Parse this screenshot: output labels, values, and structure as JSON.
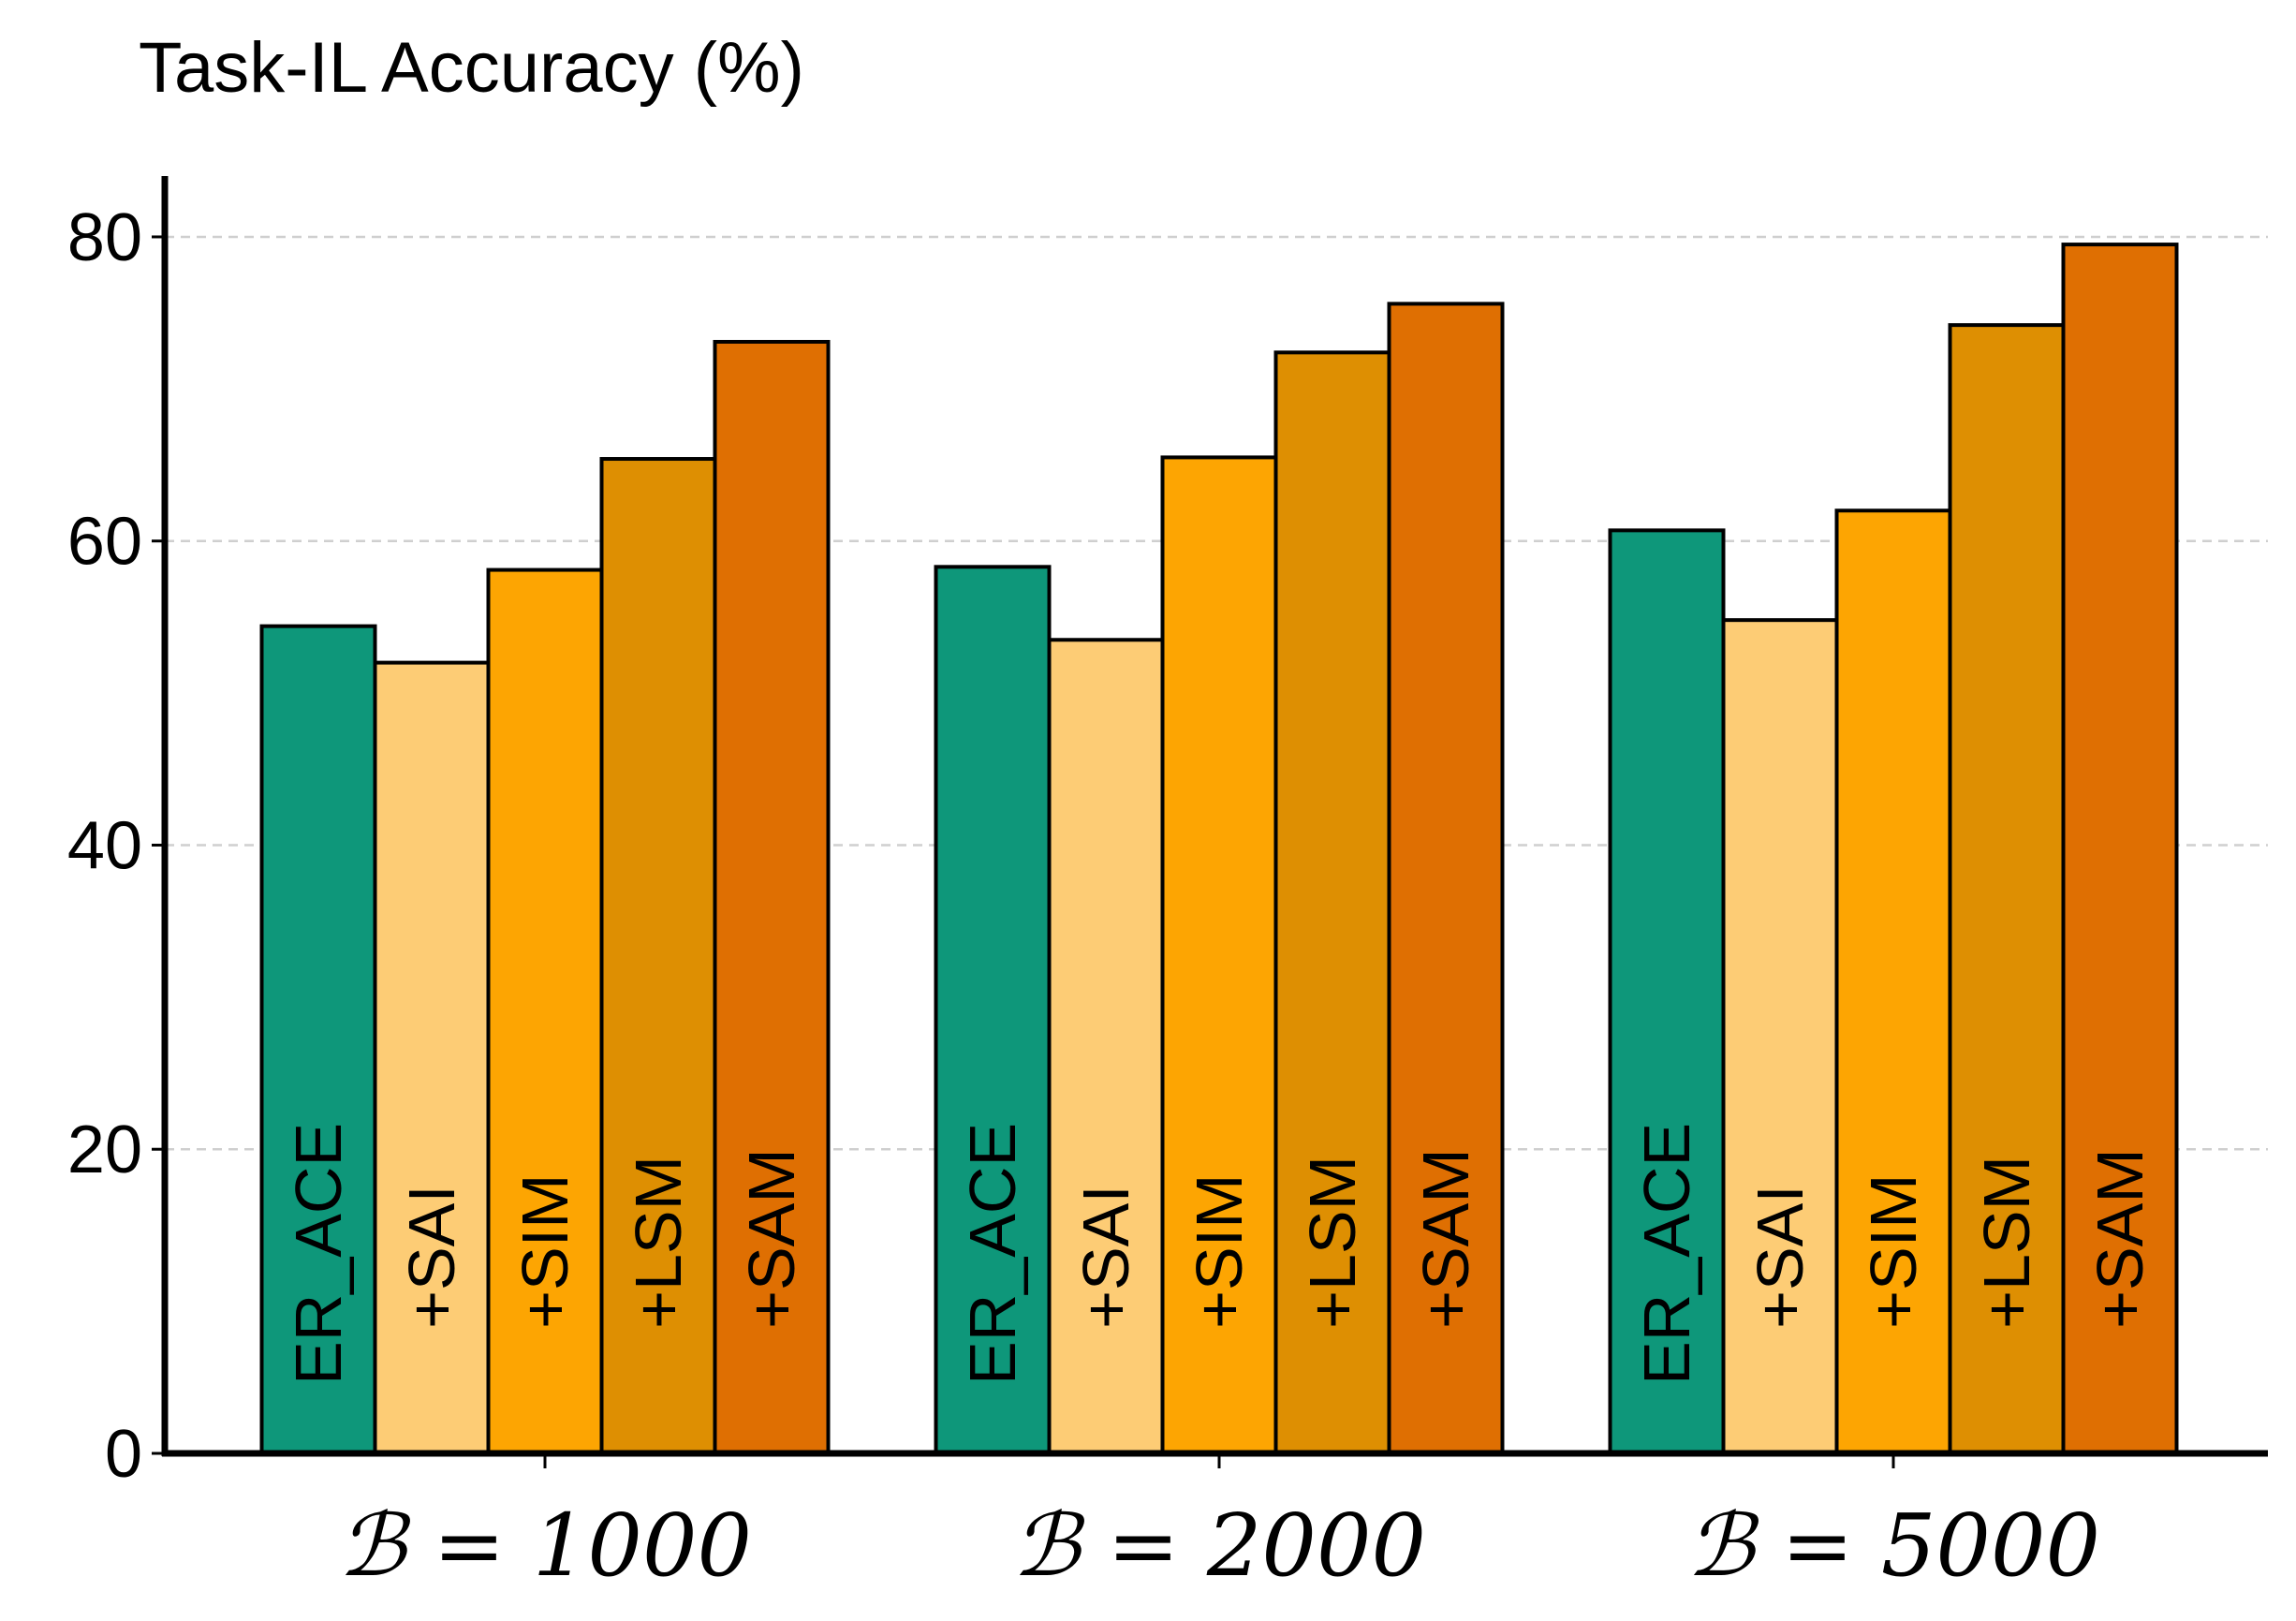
{
  "chart_data": {
    "type": "bar",
    "title": "Task-IL Accuracy (%)",
    "xlabel": "",
    "ylabel": "",
    "categories": [
      "ℬ = 1000",
      "ℬ = 2000",
      "ℬ = 5000"
    ],
    "series": [
      {
        "name": "ER_ACE",
        "values": [
          54.4,
          58.3,
          60.7
        ],
        "color": "#0e977a"
      },
      {
        "name": "+SAI",
        "values": [
          52.0,
          53.5,
          54.8
        ],
        "color": "#fdcc75"
      },
      {
        "name": "+SIM",
        "values": [
          58.1,
          65.5,
          62.0
        ],
        "color": "#fda502"
      },
      {
        "name": "+LSM",
        "values": [
          65.4,
          72.4,
          74.2
        ],
        "color": "#de8f02"
      },
      {
        "name": "+SAM",
        "values": [
          73.1,
          75.6,
          79.5
        ],
        "color": "#df6f02"
      }
    ],
    "yticks": [
      "0",
      "20",
      "40",
      "60",
      "80"
    ],
    "ylim": [
      0,
      84
    ],
    "grid": "y-dashed",
    "legend": "none (labels inside bars)"
  }
}
